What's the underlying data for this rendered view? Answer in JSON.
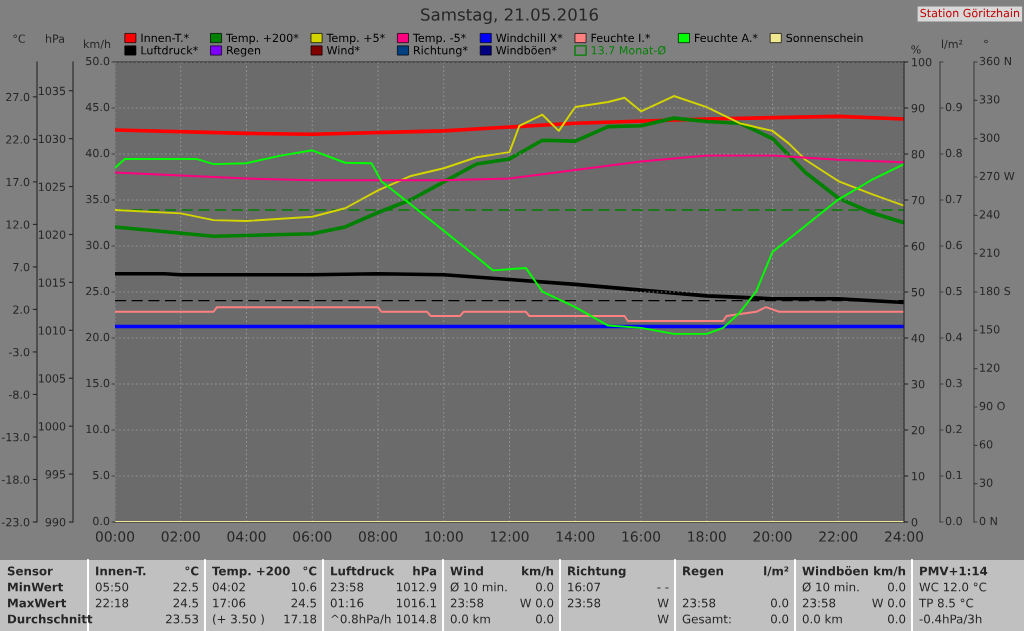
{
  "chart_data": {
    "type": "line",
    "title": "Samstag, 21.05.2016",
    "xlim": [
      0,
      24
    ],
    "xticks": [
      {
        "value": 0,
        "label": "00:00"
      },
      {
        "value": 2,
        "label": "02:00"
      },
      {
        "value": 4,
        "label": "04:00"
      },
      {
        "value": 6,
        "label": "06:00"
      },
      {
        "value": 8,
        "label": "08:00"
      },
      {
        "value": 10,
        "label": "10:00"
      },
      {
        "value": 12,
        "label": "12:00"
      },
      {
        "value": 14,
        "label": "14:00"
      },
      {
        "value": 16,
        "label": "16:00"
      },
      {
        "value": 18,
        "label": "18:00"
      },
      {
        "value": 20,
        "label": "20:00"
      },
      {
        "value": 22,
        "label": "22:00"
      },
      {
        "value": 24,
        "label": "24:00"
      }
    ],
    "ylabel": "°C",
    "ylim": [
      -23,
      31.1
    ],
    "yticks": [
      {
        "value": -23,
        "label": "-23.0"
      },
      {
        "value": -18,
        "label": "-18.0"
      },
      {
        "value": -13,
        "label": "-13.0"
      },
      {
        "value": -8,
        "label": "-8.0"
      },
      {
        "value": -3,
        "label": "-3.0"
      },
      {
        "value": 2,
        "label": "2.0"
      },
      {
        "value": 7,
        "label": "7.0"
      },
      {
        "value": 12,
        "label": "12.0"
      },
      {
        "value": 17,
        "label": "17.0"
      },
      {
        "value": 22,
        "label": "22.0"
      },
      {
        "value": 27,
        "label": "27.0"
      }
    ],
    "y2label": "%",
    "y2lim": [
      0,
      100
    ],
    "y2ticks": [
      0,
      10,
      20,
      30,
      40,
      50,
      60,
      70,
      80,
      90,
      100
    ],
    "y3label": "hPa",
    "y3lim": [
      990,
      1038
    ],
    "y3ticks": [
      990,
      995,
      1000,
      1005,
      1010,
      1015,
      1020,
      1025,
      1030,
      1035
    ],
    "grid": true,
    "legend": "top",
    "series": [
      {
        "name": "Innen-T.*",
        "color": "#ff0000",
        "x": [
          0,
          4,
          6,
          10,
          14,
          18,
          22,
          24
        ],
        "values": [
          23.1,
          22.7,
          22.6,
          23.0,
          23.9,
          24.4,
          24.7,
          24.4
        ]
      },
      {
        "name": "Temp. +200*",
        "color": "#008000",
        "x": [
          0,
          3,
          6,
          7,
          8,
          9,
          10,
          11,
          12,
          13,
          14,
          15,
          16,
          17,
          18,
          19,
          20,
          21,
          22,
          23,
          24
        ],
        "values": [
          11.7,
          10.6,
          10.9,
          11.7,
          13.4,
          14.9,
          17.0,
          19.1,
          19.7,
          21.9,
          21.8,
          23.5,
          23.6,
          24.5,
          24.1,
          23.9,
          22.1,
          18.1,
          15.1,
          13.4,
          12.2
        ]
      },
      {
        "name": "Temp. +5*",
        "color": "#d4d400",
        "x": [
          0,
          2,
          3,
          4,
          6,
          7,
          8,
          9,
          10,
          11,
          12,
          12.3,
          13,
          13.5,
          14,
          15,
          15.5,
          16,
          17,
          18,
          19,
          20,
          20.5,
          21,
          22,
          23,
          24
        ],
        "values": [
          13.7,
          13.3,
          12.5,
          12.4,
          12.9,
          13.9,
          16.0,
          17.7,
          18.6,
          19.9,
          20.5,
          23.6,
          24.9,
          23.0,
          25.8,
          26.4,
          26.9,
          25.3,
          27.1,
          25.8,
          23.9,
          23.0,
          21.5,
          19.6,
          17.1,
          15.6,
          14.2
        ]
      },
      {
        "name": "Temp. -5*",
        "color": "#ff0080",
        "x": [
          0,
          4,
          6,
          10,
          12,
          14,
          16,
          18,
          20,
          22,
          24
        ],
        "values": [
          18.1,
          17.4,
          17.2,
          17.2,
          17.4,
          18.4,
          19.4,
          20.1,
          20.1,
          19.6,
          19.3
        ]
      },
      {
        "name": "Windchill X*",
        "color": "#0000ff",
        "x": [
          0,
          24
        ],
        "values": [
          0.0,
          0.0
        ]
      },
      {
        "name": "Feuchte I.*",
        "color": "#ff8080",
        "axis": "y2",
        "x": [
          0,
          3,
          3.1,
          8,
          8.1,
          9.5,
          9.6,
          10.5,
          10.6,
          12.5,
          12.6,
          15.5,
          15.6,
          18.5,
          18.6,
          19.5,
          19.8,
          20.2,
          24
        ],
        "values": [
          45.7,
          45.7,
          46.7,
          46.7,
          45.7,
          45.7,
          44.8,
          44.8,
          45.7,
          45.7,
          44.8,
          44.8,
          43.7,
          43.7,
          44.8,
          45.7,
          46.7,
          45.7,
          45.7
        ]
      },
      {
        "name": "Feuchte A.*",
        "color": "#00ff00",
        "axis": "y2",
        "x": [
          0,
          0.3,
          2.5,
          3,
          4,
          5,
          6,
          7,
          7.8,
          8.1,
          9,
          10,
          11,
          11.5,
          12.5,
          13,
          14,
          15,
          16,
          17,
          18,
          18.5,
          19,
          19.5,
          20,
          21,
          22,
          23,
          24
        ],
        "values": [
          77.0,
          78.9,
          78.9,
          77.8,
          78.0,
          79.6,
          80.8,
          78.1,
          78.0,
          74.1,
          69.0,
          63.3,
          57.6,
          54.7,
          55.2,
          50.1,
          46.7,
          42.7,
          42.2,
          40.9,
          40.9,
          42.2,
          45.5,
          50.1,
          58.7,
          64.4,
          70.1,
          74.3,
          77.8
        ]
      },
      {
        "name": "Sonnenschein",
        "color": "#f0e890",
        "axis": "y2",
        "x": [
          0,
          24
        ],
        "values": [
          0,
          0
        ]
      },
      {
        "name": "Luftdruck*",
        "color": "#000000",
        "axis": "y3",
        "x": [
          0,
          1.5,
          2,
          4,
          6,
          8,
          10,
          12,
          14,
          16,
          18,
          20,
          22,
          24
        ],
        "values": [
          1015.9,
          1015.9,
          1015.8,
          1015.8,
          1015.8,
          1015.9,
          1015.8,
          1015.3,
          1014.8,
          1014.2,
          1013.6,
          1013.3,
          1013.3,
          1012.9
        ]
      },
      {
        "name": "Regen",
        "color": "#8000ff"
      },
      {
        "name": "Wind*",
        "color": "#800000"
      },
      {
        "name": "Richtung*",
        "color": "#004080"
      },
      {
        "name": "Windböen*",
        "color": "#000080"
      }
    ],
    "ref_lines": [
      {
        "axis": "y",
        "value": 13.7,
        "label": "13.7 Monat-Ø",
        "color": "#008000",
        "line_style": "dashed"
      },
      {
        "axis": "y3",
        "value": 1013.1,
        "color": "#000000",
        "line_style": "dashed"
      }
    ],
    "annotations": [
      "Station Göritzhain",
      "km/h\n50.0\n45.0\n40.0\n35.0\n30.0\n25.0\n20.0\n15.0\n10.0\n5.0\n0.0",
      "l/m²\n\n0.9\n0.8\n0.7\n0.6\n0.5\n0.4\n0.3\n0.2\n0.1\n0.0",
      "°\n360 N\n330\n300\n270 W\n240\n210\n180 S\n150\n120\n90 O\n60\n30\n0 N",
      "Sensor\nMinWert\nMaxWert\nDurchschnitt",
      "Innen-T.\t°C\n05:50\t22.5\n22:18\t24.5\n\t23.53",
      "Temp. +200\t°C\n04:02\t10.6\n17:06\t24.5\n(+ 3.50 )\t17.18",
      "Luftdruck\thPa\n23:58\t1012.9\n01:16\t1016.1\n^0.8hPa/h\t1014.8",
      "Wind\tkm/h\nØ 10 min.\t0.0\n23:58\tW 0.0\n0.0 km\t0.0",
      "Richtung\t\n16:07\t- -\n23:58\tW\n\tW",
      "Regen\tl/m²\n\t\n23:58\t0.0\nGesamt:\t0.0",
      "Windböen\tkm/h\nØ 10 min.\t0.0\n23:58\tW 0.0\n0.0 km\t0.0",
      "PMV+1:14\nWC 12.0 °C\nTP 8.5 °C\n-0.4hPa/3h"
    ]
  }
}
